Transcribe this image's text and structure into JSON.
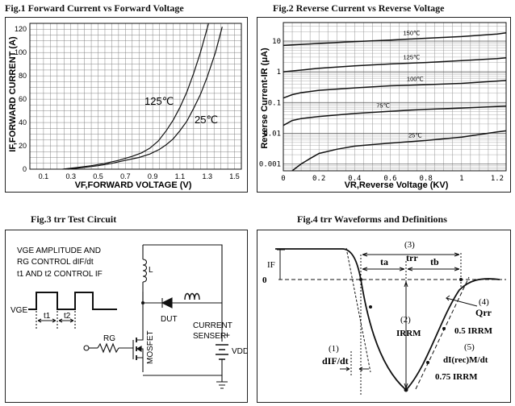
{
  "fig1": {
    "title": "Fig.1  Forward Current vs Forward Voltage",
    "chart_data": {
      "type": "line",
      "title": "Fig.1  Forward Current vs Forward Voltage",
      "xlabel": "VF,FORWARD VOLTAGE (V)",
      "ylabel": "IF,FORWARD CURRENT (A)",
      "xlim": [
        0,
        1.55
      ],
      "ylim": [
        0,
        125
      ],
      "x_ticks": [
        "0.1",
        "0.3",
        "0.5",
        "0.7",
        "0.9",
        "1.1",
        "1.3",
        "1.5"
      ],
      "x_tick_values": [
        0.1,
        0.3,
        0.5,
        0.7,
        0.9,
        1.1,
        1.3,
        1.5
      ],
      "y_ticks": [
        "0",
        "20",
        "40",
        "60",
        "80",
        "100",
        "120"
      ],
      "y_tick_values": [
        0,
        20,
        40,
        60,
        80,
        100,
        120
      ],
      "grid": true,
      "series": [
        {
          "name": "125℃",
          "x": [
            0.24,
            0.35,
            0.45,
            0.55,
            0.65,
            0.75,
            0.82,
            0.88,
            0.94,
            1.0,
            1.05,
            1.1,
            1.15,
            1.2,
            1.25,
            1.31
          ],
          "y": [
            0,
            1.5,
            3,
            5,
            7.5,
            11,
            14,
            18,
            24,
            33,
            42,
            53,
            66,
            82,
            100,
            125
          ]
        },
        {
          "name": "25℃",
          "x": [
            0.28,
            0.4,
            0.5,
            0.6,
            0.7,
            0.8,
            0.88,
            0.95,
            1.0,
            1.05,
            1.1,
            1.15,
            1.2,
            1.25,
            1.3,
            1.36,
            1.41
          ],
          "y": [
            0,
            1.5,
            3,
            5,
            7.5,
            10,
            13,
            17,
            21,
            26,
            33,
            41,
            52,
            64,
            79,
            100,
            122
          ]
        }
      ]
    }
  },
  "fig2": {
    "title": "Fig.2  Reverse Current vs Reverse Voltage",
    "chart_data": {
      "type": "line",
      "title": "Fig.2  Reverse Current vs Reverse Voltage",
      "xlabel": "VR,Reverse Voltage (KV)",
      "ylabel": "Reverse Current-IR (μA)",
      "xlim": [
        0,
        1.25
      ],
      "ylim": [
        0.0006,
        40
      ],
      "yscale": "log",
      "x_ticks": [
        "0",
        "0.2",
        "0.4",
        "0.6",
        "0.8",
        "1",
        "1.2"
      ],
      "x_tick_values": [
        0,
        0.2,
        0.4,
        0.6,
        0.8,
        1.0,
        1.2
      ],
      "y_ticks": [
        "0.001",
        "0.01",
        "0.1",
        "1",
        "10"
      ],
      "y_tick_values": [
        0.001,
        0.01,
        0.1,
        1,
        10
      ],
      "grid": true,
      "series": [
        {
          "name": "150℃",
          "x": [
            0,
            0.2,
            0.4,
            0.6,
            0.8,
            1.0,
            1.2,
            1.25
          ],
          "y": [
            7.2,
            8.4,
            9.6,
            10.8,
            12.3,
            14,
            17,
            18.5
          ]
        },
        {
          "name": "125℃",
          "x": [
            0,
            0.2,
            0.4,
            0.6,
            0.8,
            1.0,
            1.2,
            1.25
          ],
          "y": [
            1.0,
            1.3,
            1.55,
            1.8,
            2.0,
            2.3,
            2.7,
            2.85
          ]
        },
        {
          "name": "100℃",
          "x": [
            0,
            0.05,
            0.1,
            0.2,
            0.4,
            0.6,
            0.8,
            1.0,
            1.2,
            1.25
          ],
          "y": [
            0.14,
            0.18,
            0.21,
            0.25,
            0.3,
            0.35,
            0.38,
            0.42,
            0.5,
            0.52
          ]
        },
        {
          "name": "75℃",
          "x": [
            0,
            0.05,
            0.1,
            0.2,
            0.4,
            0.6,
            0.8,
            1.0,
            1.2,
            1.25
          ],
          "y": [
            0.018,
            0.026,
            0.03,
            0.035,
            0.044,
            0.052,
            0.06,
            0.066,
            0.074,
            0.076
          ]
        },
        {
          "name": "25℃",
          "x": [
            0.05,
            0.1,
            0.15,
            0.2,
            0.3,
            0.4,
            0.6,
            0.8,
            1.0,
            1.2,
            1.25
          ],
          "y": [
            0.0006,
            0.001,
            0.0015,
            0.0022,
            0.003,
            0.0038,
            0.0048,
            0.0058,
            0.0075,
            0.011,
            0.012
          ]
        }
      ]
    }
  },
  "fig3": {
    "title": "Fig.3  trr Test Circuit",
    "vge_amplitude": "VGE AMPLITUDE AND",
    "rg_control": "RG  CONTROL  dIF/dt",
    "t1t2_control": "t1 AND t2 CONTROL IF",
    "vge": "VGE",
    "t1": "t1",
    "t2": "t2",
    "rg": "RG",
    "l": "L",
    "dut": "DUT",
    "current": "CURRENT",
    "senser": "SENSER",
    "mosfet": "MOSFET",
    "plus": "+",
    "vdd": "VDD"
  },
  "fig4": {
    "title": "Fig.4 trr Waveforms and Definitions",
    "if": "IF",
    "zero": "0",
    "n3": "(3)",
    "trr": "trr",
    "ta": "ta",
    "tb": "tb",
    "n2": "(2)",
    "irrm": "IRRM",
    "n4": "(4)",
    "qrr": "Qrr",
    "half_irrm": "0.5 IRRM",
    "n5": "(5)",
    "dirrec": "dI(rec)M/dt",
    "n1": "(1)",
    "difdt": "dIF/dt",
    "q_irrm": "0.75 IRRM"
  }
}
